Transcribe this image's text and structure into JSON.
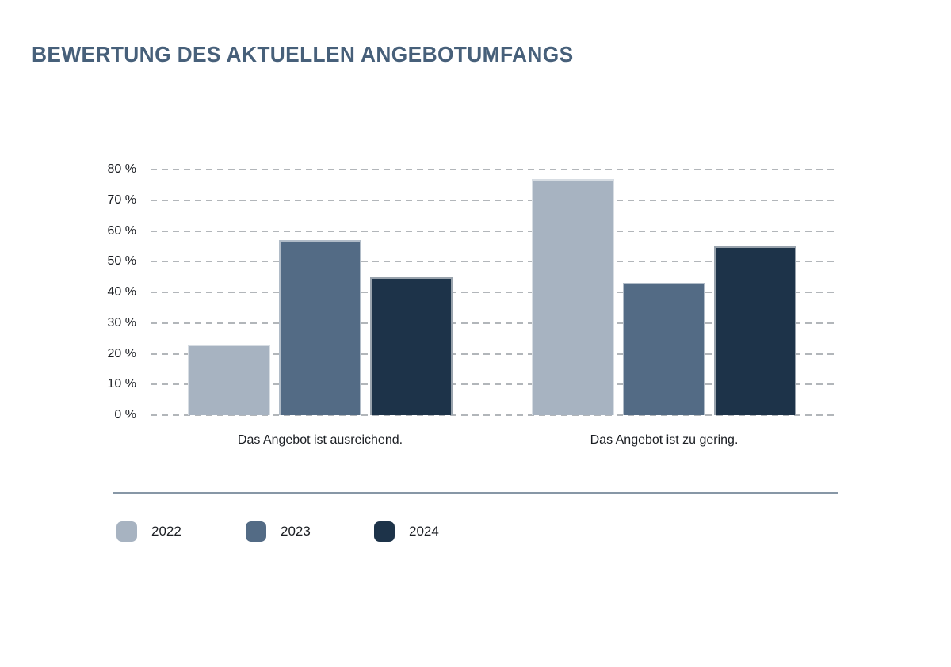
{
  "page_title": "BEWERTUNG DES AKTUELLEN ANGEBOTUMFANGS",
  "colors": {
    "title": "#47607a",
    "grid": "#b2b6ba",
    "text": "#1b1e23",
    "divider": "#8797a6",
    "series_2022": "#a7b3c1",
    "series_2023": "#536b85",
    "series_2024": "#1d3349"
  },
  "chart_data": {
    "type": "bar",
    "title": "BEWERTUNG DES AKTUELLEN ANGEBOTUMFANGS",
    "categories": [
      "Das Angebot ist ausreichend.",
      "Das Angebot ist zu gering."
    ],
    "series": [
      {
        "name": "2022",
        "color": "#a7b3c1",
        "values": [
          23,
          77
        ]
      },
      {
        "name": "2023",
        "color": "#536b85",
        "values": [
          57,
          43
        ]
      },
      {
        "name": "2024",
        "color": "#1d3349",
        "values": [
          45,
          55
        ]
      }
    ],
    "xlabel": "",
    "ylabel": "",
    "unit": "%",
    "ylim": [
      0,
      80
    ],
    "y_ticks": [
      "80 %",
      "70 %",
      "60 %",
      "50 %",
      "40 %",
      "30 %",
      "20 %",
      "10 %",
      "0 %"
    ],
    "grid": "horizontal-dashed",
    "legend_position": "bottom-left",
    "legend_entries": [
      "2022",
      "2023",
      "2024"
    ]
  }
}
